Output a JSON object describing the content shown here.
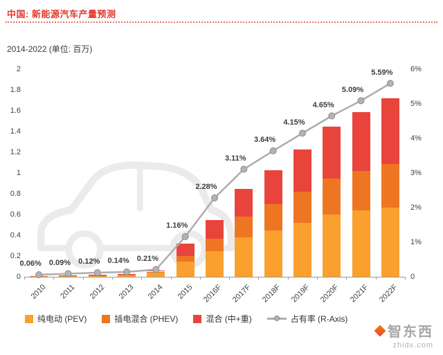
{
  "header": {
    "title": "中国: 新能源汽车产量预测",
    "subtitle": "2014-2022 (单位: 百万)"
  },
  "chart_data": {
    "type": "bar",
    "subtype": "stacked-bars-with-share-line",
    "categories": [
      "2010",
      "2011",
      "2012",
      "2013",
      "2014",
      "2015",
      "2016F",
      "2017F",
      "2018F",
      "2019F",
      "2020F",
      "2021F",
      "2022F"
    ],
    "series": [
      {
        "name": "纯电动 (PEV)",
        "color": "#F9A02E",
        "values": [
          0.008,
          0.01,
          0.012,
          0.015,
          0.04,
          0.15,
          0.25,
          0.38,
          0.45,
          0.52,
          0.6,
          0.64,
          0.67
        ]
      },
      {
        "name": "插电混合 (PHEV)",
        "color": "#EE7623",
        "values": [
          0.002,
          0.003,
          0.004,
          0.005,
          0.01,
          0.05,
          0.12,
          0.2,
          0.25,
          0.3,
          0.35,
          0.38,
          0.42
        ]
      },
      {
        "name": "混合 (中+重)",
        "color": "#E9443C",
        "values": [
          0.001,
          0.002,
          0.003,
          0.004,
          0.008,
          0.12,
          0.18,
          0.27,
          0.33,
          0.41,
          0.5,
          0.57,
          0.63
        ]
      }
    ],
    "line_series": {
      "name": "占有率 (R-Axis)",
      "color": "#ACACAC",
      "marker_fill": "#B3B3B3",
      "marker_stroke": "#8A8A8A",
      "values": [
        0.06,
        0.09,
        0.12,
        0.14,
        0.21,
        1.16,
        2.28,
        3.11,
        3.64,
        4.15,
        4.65,
        5.09,
        5.59
      ],
      "labels": [
        "0.06%",
        "0.09%",
        "0.12%",
        "0.14%",
        "0.21%",
        "1.16%",
        "2.28%",
        "3.11%",
        "3.64%",
        "4.15%",
        "4.65%",
        "5.09%",
        "5.59%"
      ]
    },
    "left_axis": {
      "min": 0,
      "max": 2,
      "ticks": [
        "2",
        "1.8",
        "1.6",
        "1.4",
        "1.2",
        "1",
        "0.8",
        "0.6",
        "0.4",
        "0.2",
        "0"
      ]
    },
    "right_axis": {
      "min": 0,
      "max": 6,
      "ticks": [
        "6%",
        "5%",
        "4%",
        "3%",
        "2%",
        "1%",
        "0"
      ]
    },
    "grid": false,
    "legend_position": "bottom"
  },
  "legend": {
    "items": [
      {
        "label": "纯电动 (PEV)",
        "type": "square",
        "color": "#F9A02E"
      },
      {
        "label": "插电混合 (PHEV)",
        "type": "square",
        "color": "#EE7623"
      },
      {
        "label": "混合 (中+重)",
        "type": "square",
        "color": "#E9443C"
      },
      {
        "label": "占有率 (R-Axis)",
        "type": "line",
        "color": "#ACACAC"
      }
    ]
  },
  "watermark": {
    "brand": "智东西",
    "site": "zhidx.com"
  },
  "colors": {
    "title": "#E2382D",
    "divider": "#E57368",
    "axis_text": "#404040",
    "axis_line": "#9B9B9B",
    "car_watermark": "#EBEBEB"
  }
}
